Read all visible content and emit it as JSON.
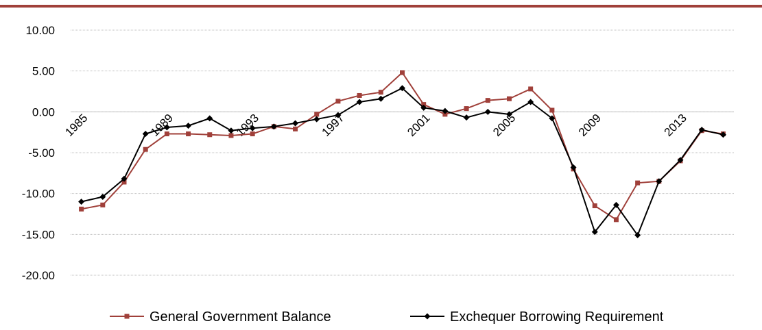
{
  "chart_data": {
    "type": "line",
    "categories": [
      "1985",
      null,
      null,
      null,
      "1989",
      null,
      null,
      null,
      "1993",
      null,
      null,
      null,
      "1997",
      null,
      null,
      null,
      "2001",
      null,
      null,
      null,
      "2005",
      null,
      null,
      null,
      "2009",
      null,
      null,
      null,
      "2013",
      null,
      null
    ],
    "series": [
      {
        "name": "General Government Balance",
        "color": "#a0403a",
        "marker": "square",
        "values": [
          -11.9,
          -11.4,
          -8.6,
          -4.6,
          -2.7,
          -2.7,
          -2.8,
          -2.9,
          -2.7,
          -1.8,
          -2.1,
          -0.3,
          1.3,
          2.0,
          2.4,
          4.8,
          0.9,
          -0.3,
          0.4,
          1.4,
          1.6,
          2.8,
          0.2,
          -7.0,
          -11.5,
          -13.2,
          -8.7,
          -8.5,
          -6.0,
          -2.3,
          -2.7
        ]
      },
      {
        "name": "Exchequer Borrowing Requirement",
        "color": "#000000",
        "marker": "diamond",
        "values": [
          -11.0,
          -10.4,
          -8.2,
          -2.7,
          -1.9,
          -1.7,
          -0.8,
          -2.3,
          -2.0,
          -1.8,
          -1.4,
          -0.9,
          -0.4,
          1.2,
          1.6,
          2.9,
          0.5,
          0.1,
          -0.7,
          0.0,
          -0.3,
          1.2,
          -0.8,
          -6.8,
          -14.7,
          -11.4,
          -15.1,
          -8.5,
          -5.9,
          -2.2,
          -2.8
        ]
      }
    ],
    "ylim": [
      -20,
      10
    ],
    "yticks": [
      {
        "value": -20,
        "label": "-20.00"
      },
      {
        "value": -15,
        "label": "-15.00"
      },
      {
        "value": -10,
        "label": "-10.00"
      },
      {
        "value": -5,
        "label": "-5.00"
      },
      {
        "value": 0,
        "label": "0.00"
      },
      {
        "value": 5,
        "label": "5.00"
      },
      {
        "value": 10,
        "label": "10.00"
      }
    ],
    "grid": true,
    "legend": "bottom"
  }
}
